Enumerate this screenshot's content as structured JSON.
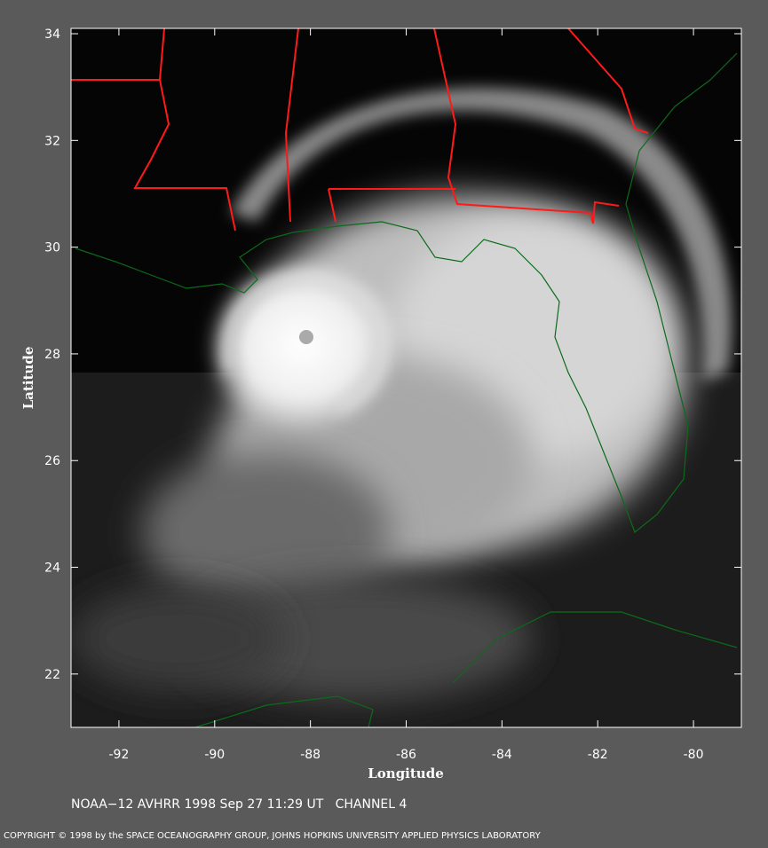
{
  "map": {
    "xlabel": "Longitude",
    "ylabel": "Latitude",
    "xlim": [
      -93,
      -79
    ],
    "ylim": [
      21,
      34.1
    ],
    "xticks": [
      -92,
      -90,
      -88,
      -86,
      -84,
      -82,
      -80
    ],
    "yticks": [
      22,
      24,
      26,
      28,
      30,
      32,
      34
    ]
  },
  "caption": "NOAA−12 AVHRR 1998 Sep 27 11:29 UT   CHANNEL 4",
  "copyright": "COPYRIGHT © 1998 by the SPACE OCEANOGRAPHY GROUP, JOHNS HOPKINS UNIVERSITY APPLIED PHYSICS LABORATORY"
}
